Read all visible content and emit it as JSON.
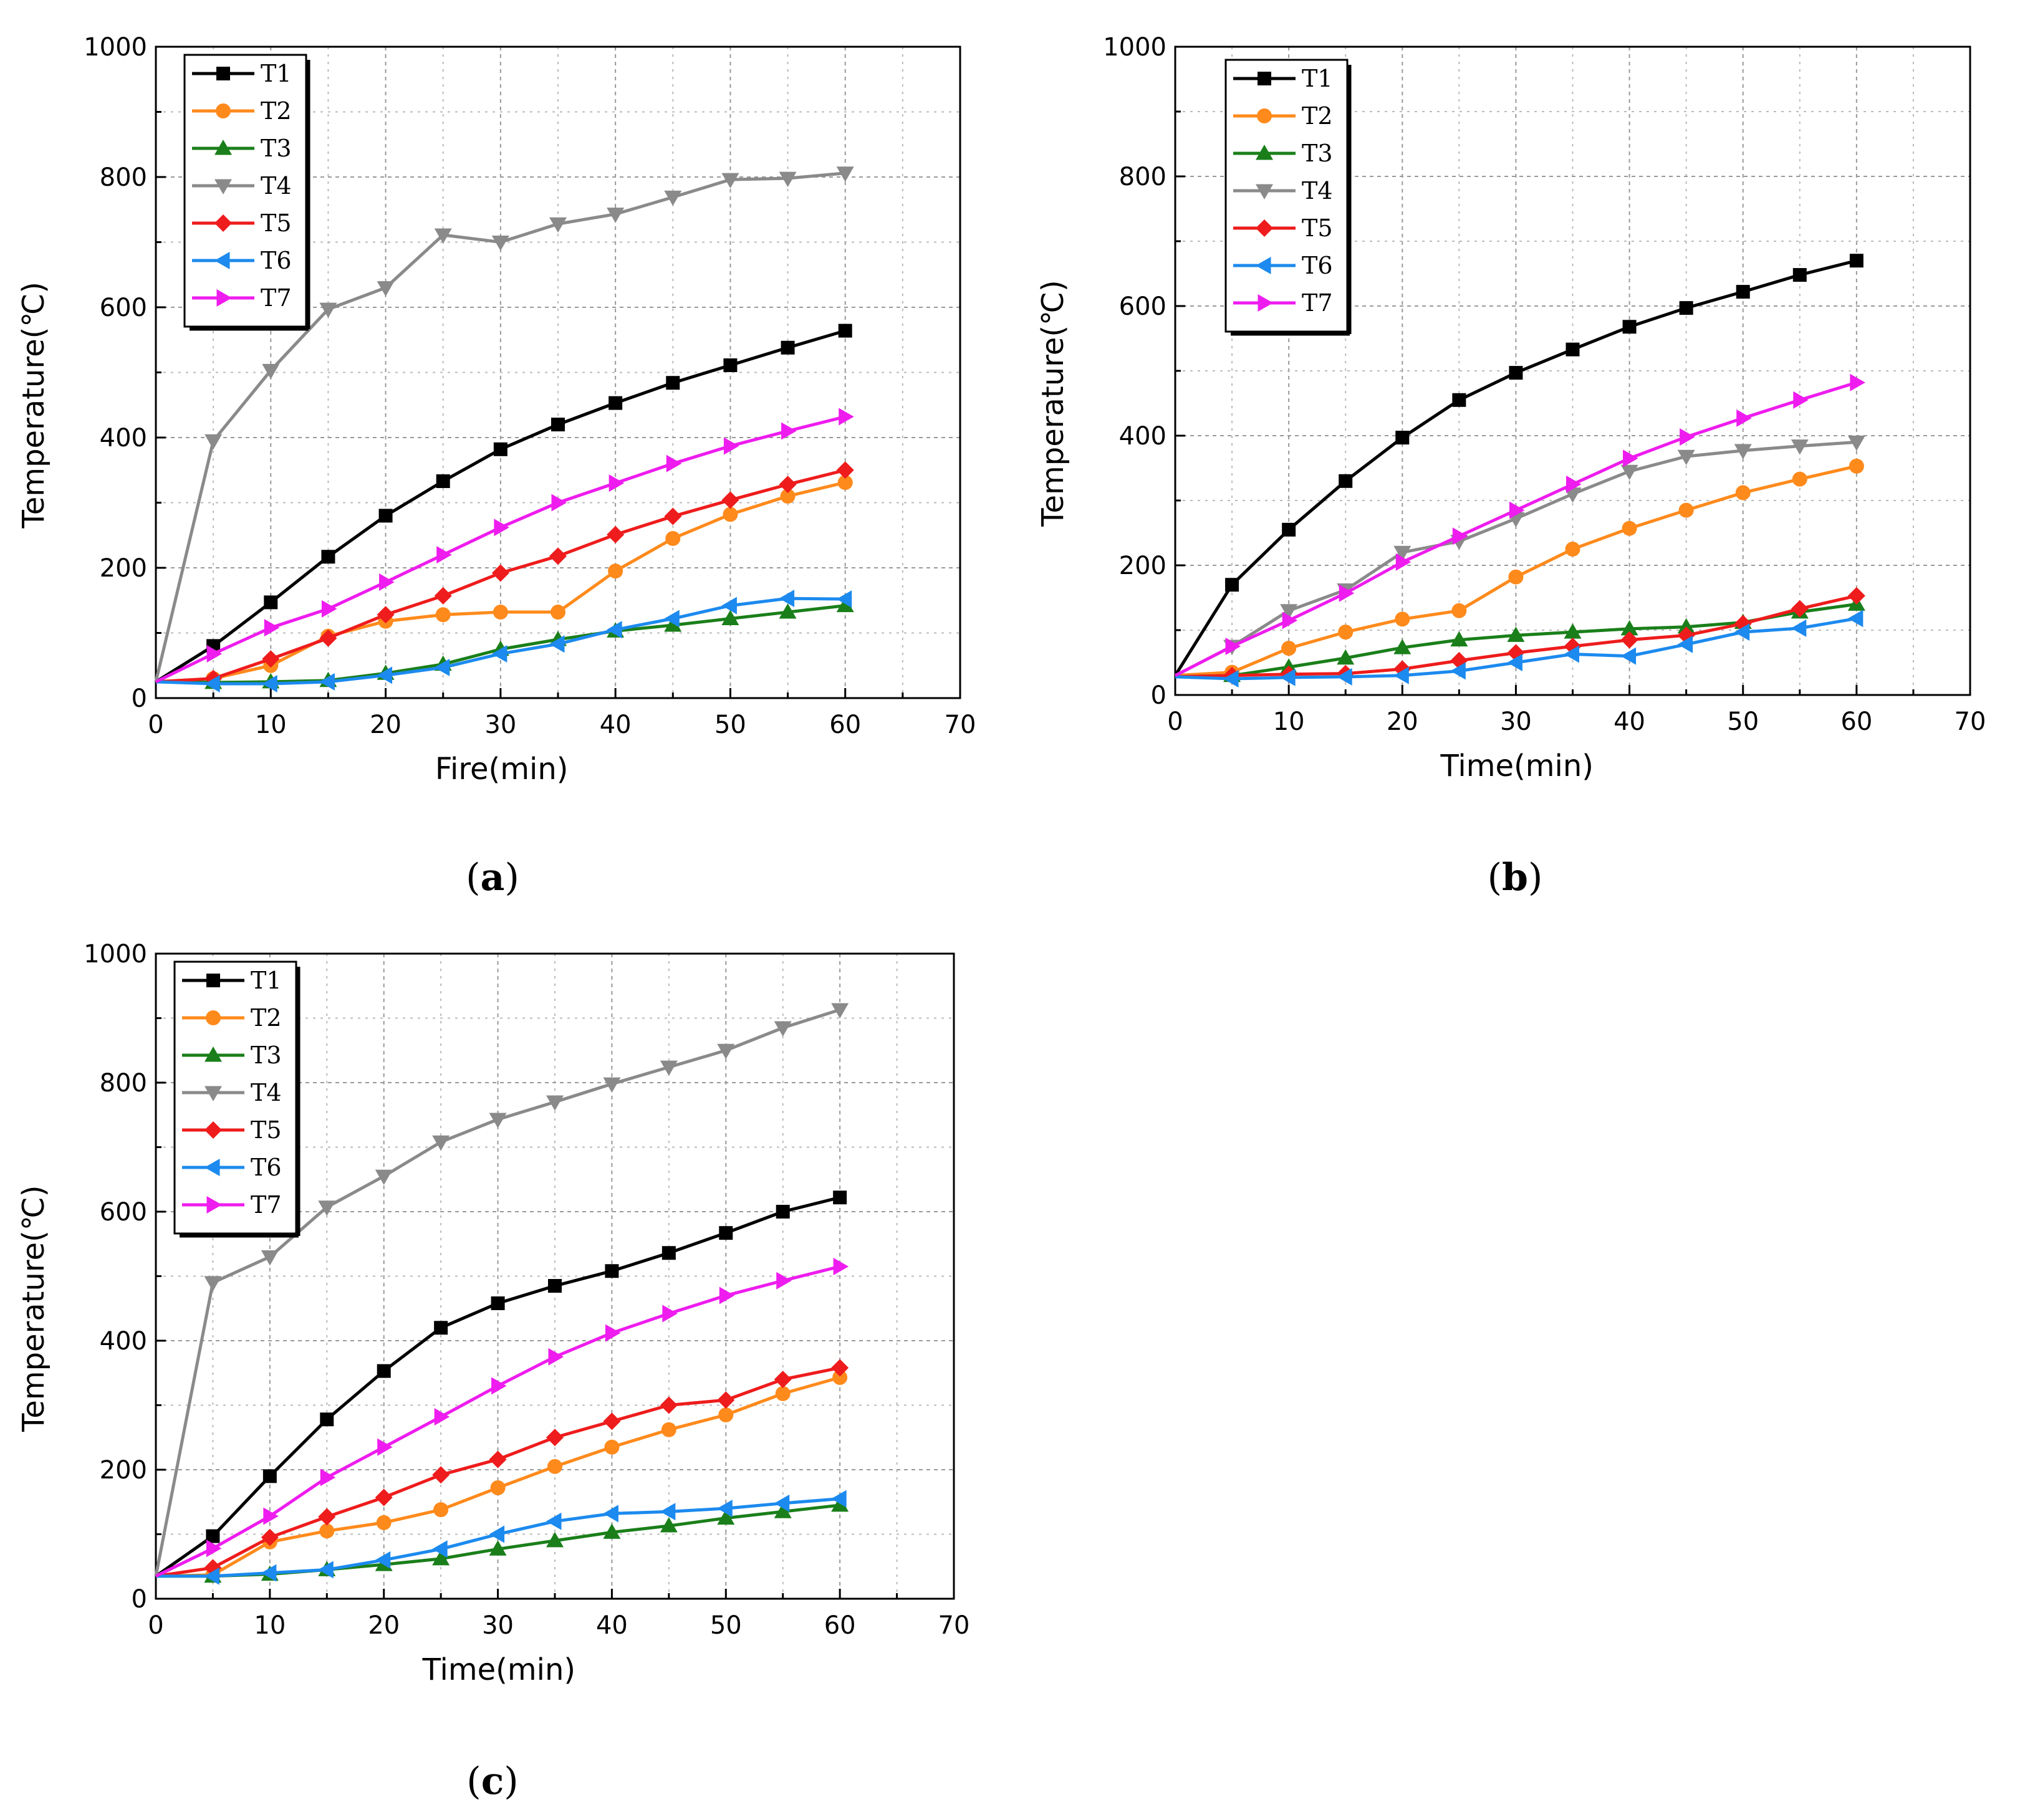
{
  "figure": {
    "legend_position": "top-left",
    "series_styles": [
      {
        "name": "T1",
        "color": "#000000",
        "marker": "square"
      },
      {
        "name": "T2",
        "color": "#ff8a1c",
        "marker": "circle"
      },
      {
        "name": "T3",
        "color": "#1a7f1a",
        "marker": "triangle-up"
      },
      {
        "name": "T4",
        "color": "#8a8a8a",
        "marker": "triangle-down"
      },
      {
        "name": "T5",
        "color": "#ee1c1c",
        "marker": "diamond"
      },
      {
        "name": "T6",
        "color": "#1c8aee",
        "marker": "triangle-left"
      },
      {
        "name": "T7",
        "color": "#ee1cee",
        "marker": "triangle-right"
      }
    ]
  },
  "chart_data": [
    {
      "type": "line",
      "caption_prefix": "(",
      "caption_letter": "a",
      "caption_suffix": ")",
      "xlabel": "Fire(min)",
      "ylabel": "Temperature(℃)",
      "xlim": [
        0,
        70
      ],
      "ylim": [
        0,
        1000
      ],
      "xticks": [
        0,
        10,
        20,
        30,
        40,
        50,
        60,
        70
      ],
      "yticks": [
        0,
        200,
        400,
        600,
        800,
        1000
      ],
      "grid": true,
      "x": [
        0,
        5,
        10,
        15,
        20,
        25,
        30,
        35,
        40,
        45,
        50,
        55,
        60
      ],
      "series": [
        {
          "name": "T1",
          "values": [
            25,
            80,
            147,
            217,
            280,
            333,
            382,
            420,
            453,
            484,
            511,
            538,
            564
          ]
        },
        {
          "name": "T2",
          "values": [
            25,
            30,
            50,
            95,
            118,
            128,
            132,
            132,
            195,
            245,
            282,
            310,
            331
          ]
        },
        {
          "name": "T3",
          "values": [
            25,
            24,
            25,
            27,
            38,
            52,
            75,
            90,
            103,
            112,
            122,
            132,
            142
          ]
        },
        {
          "name": "T4",
          "values": [
            25,
            395,
            503,
            597,
            630,
            711,
            700,
            728,
            743,
            769,
            796,
            798,
            806
          ]
        },
        {
          "name": "T5",
          "values": [
            25,
            30,
            60,
            92,
            128,
            157,
            192,
            218,
            251,
            279,
            304,
            328,
            350
          ]
        },
        {
          "name": "T6",
          "values": [
            25,
            22,
            22,
            25,
            35,
            47,
            68,
            83,
            105,
            122,
            142,
            153,
            152
          ]
        },
        {
          "name": "T7",
          "values": [
            25,
            68,
            108,
            137,
            178,
            220,
            262,
            300,
            330,
            360,
            387,
            410,
            432
          ]
        }
      ]
    },
    {
      "type": "line",
      "caption_prefix": "(",
      "caption_letter": "b",
      "caption_suffix": ")",
      "xlabel": "Time(min)",
      "ylabel": "Temperature(℃)",
      "xlim": [
        0,
        70
      ],
      "ylim": [
        0,
        1000
      ],
      "xticks": [
        0,
        10,
        20,
        30,
        40,
        50,
        60,
        70
      ],
      "yticks": [
        0,
        200,
        400,
        600,
        800,
        1000
      ],
      "grid": true,
      "x": [
        0,
        5,
        10,
        15,
        20,
        25,
        30,
        35,
        40,
        45,
        50,
        55,
        60
      ],
      "series": [
        {
          "name": "T1",
          "values": [
            30,
            170,
            255,
            330,
            397,
            455,
            497,
            533,
            568,
            597,
            622,
            648,
            670
          ]
        },
        {
          "name": "T2",
          "values": [
            30,
            35,
            72,
            97,
            117,
            130,
            182,
            225,
            257,
            285,
            312,
            333,
            353
          ]
        },
        {
          "name": "T3",
          "values": [
            28,
            30,
            43,
            57,
            73,
            85,
            92,
            97,
            102,
            105,
            112,
            128,
            140
          ]
        },
        {
          "name": "T4",
          "values": [
            30,
            75,
            130,
            162,
            220,
            237,
            272,
            310,
            345,
            368,
            377,
            384,
            390
          ]
        },
        {
          "name": "T5",
          "values": [
            28,
            30,
            32,
            33,
            40,
            53,
            65,
            75,
            85,
            92,
            110,
            133,
            153
          ]
        },
        {
          "name": "T6",
          "values": [
            28,
            25,
            27,
            28,
            30,
            37,
            50,
            63,
            60,
            78,
            97,
            103,
            118
          ]
        },
        {
          "name": "T7",
          "values": [
            30,
            75,
            115,
            157,
            205,
            245,
            285,
            325,
            365,
            398,
            427,
            455,
            482
          ]
        }
      ]
    },
    {
      "type": "line",
      "caption_prefix": "(",
      "caption_letter": "c",
      "caption_suffix": ")",
      "xlabel": "Time(min)",
      "ylabel": "Temperature(℃)",
      "xlim": [
        0,
        70
      ],
      "ylim": [
        0,
        1000
      ],
      "xticks": [
        0,
        10,
        20,
        30,
        40,
        50,
        60,
        70
      ],
      "yticks": [
        0,
        200,
        400,
        600,
        800,
        1000
      ],
      "grid": true,
      "x": [
        0,
        5,
        10,
        15,
        20,
        25,
        30,
        35,
        40,
        45,
        50,
        55,
        60
      ],
      "series": [
        {
          "name": "T1",
          "values": [
            35,
            97,
            190,
            278,
            353,
            420,
            458,
            485,
            508,
            536,
            567,
            600,
            622
          ]
        },
        {
          "name": "T2",
          "values": [
            35,
            37,
            88,
            105,
            118,
            138,
            172,
            205,
            235,
            262,
            285,
            318,
            343
          ]
        },
        {
          "name": "T3",
          "values": [
            35,
            35,
            38,
            45,
            53,
            62,
            77,
            90,
            103,
            113,
            125,
            135,
            145
          ]
        },
        {
          "name": "T4",
          "values": [
            35,
            490,
            530,
            607,
            655,
            708,
            743,
            770,
            798,
            824,
            850,
            885,
            913
          ]
        },
        {
          "name": "T5",
          "values": [
            35,
            48,
            95,
            127,
            157,
            192,
            216,
            250,
            275,
            300,
            308,
            340,
            358
          ]
        },
        {
          "name": "T6",
          "values": [
            35,
            35,
            40,
            45,
            60,
            77,
            100,
            120,
            132,
            135,
            140,
            148,
            155
          ]
        },
        {
          "name": "T7",
          "values": [
            35,
            78,
            128,
            188,
            235,
            282,
            330,
            375,
            412,
            442,
            470,
            493,
            515
          ]
        }
      ]
    }
  ]
}
